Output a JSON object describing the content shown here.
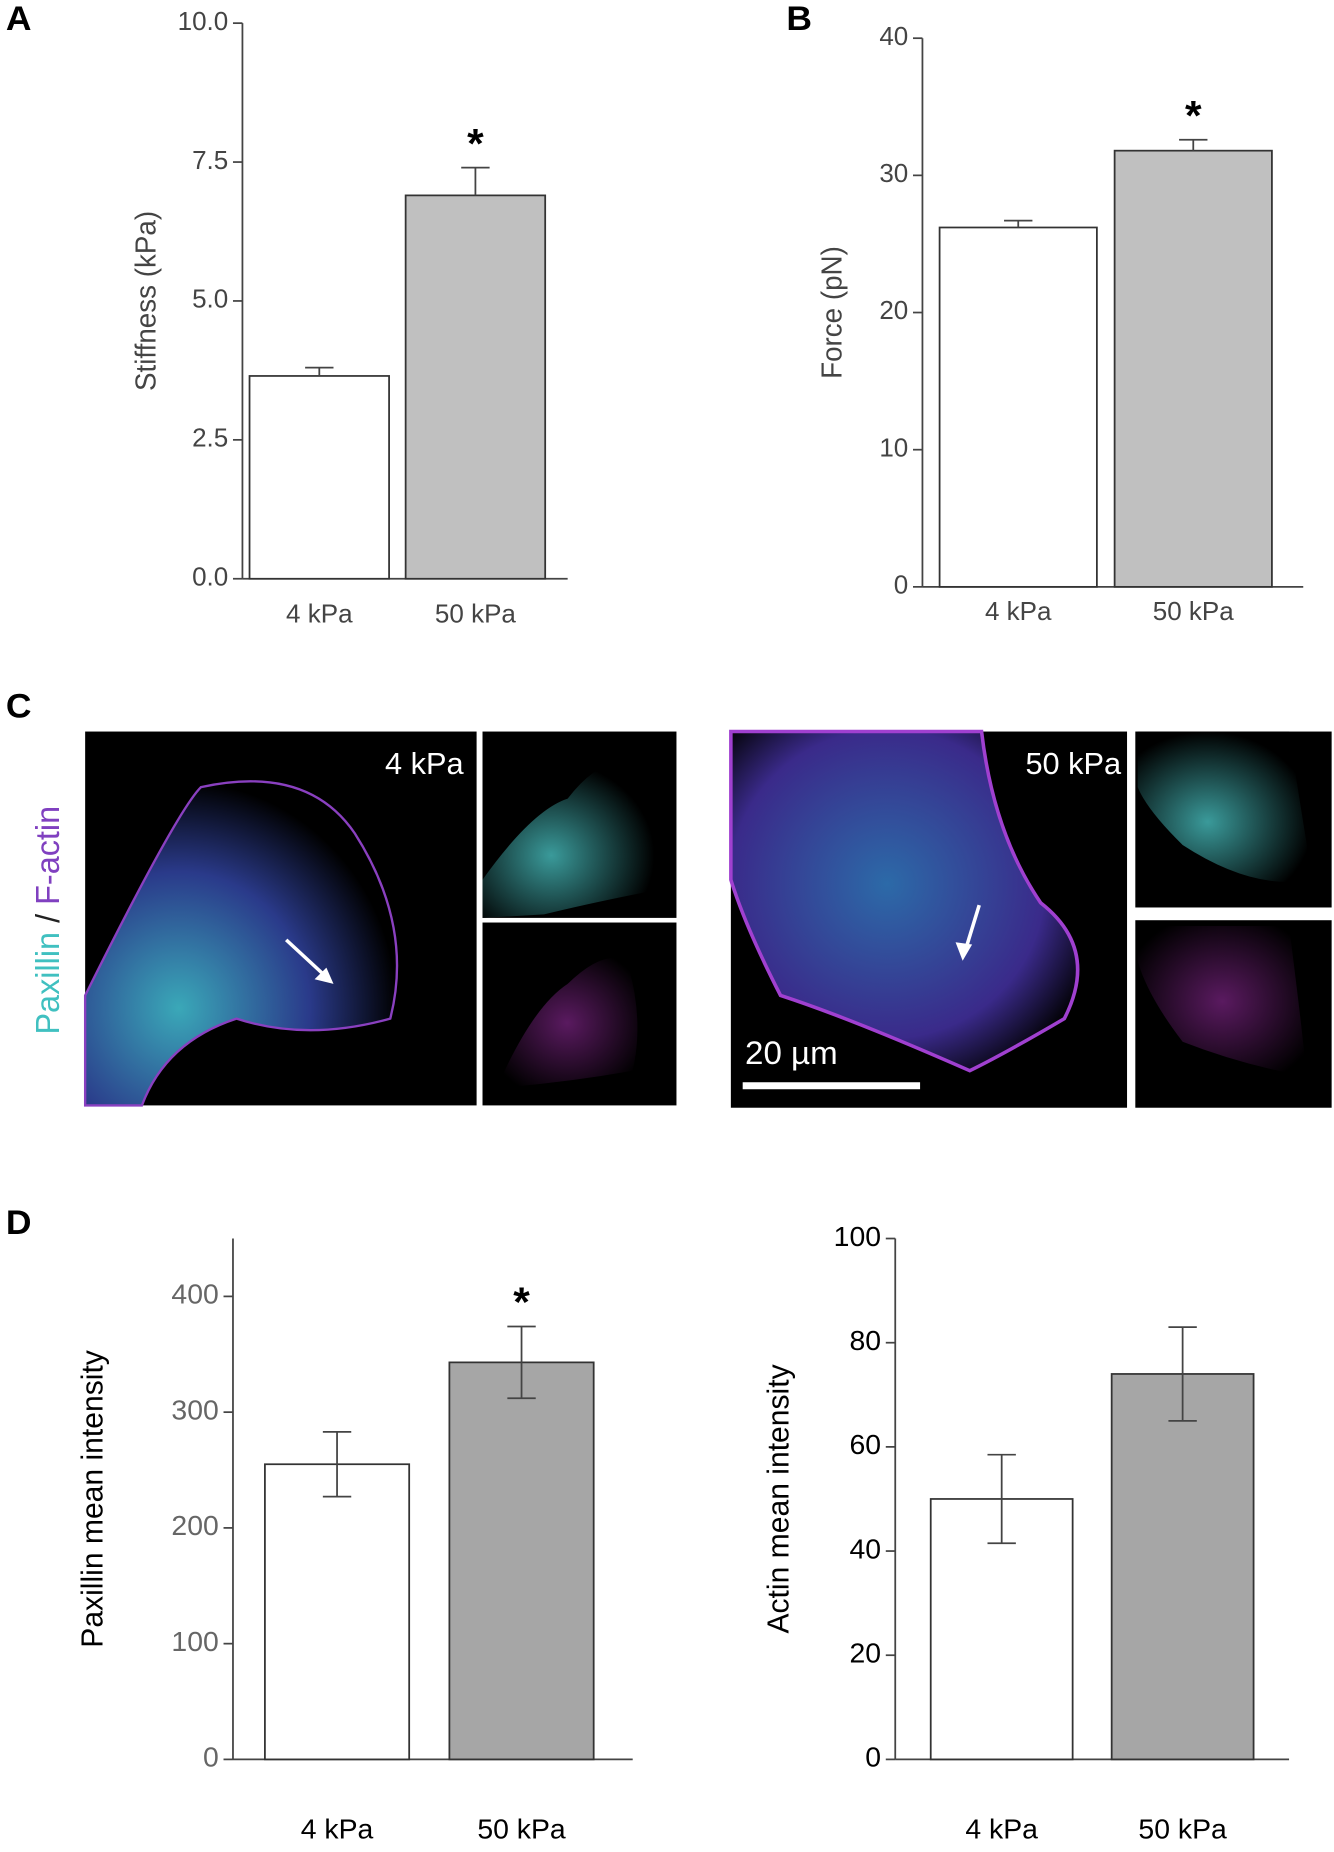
{
  "panel_labels": [
    "A",
    "B",
    "C",
    "D"
  ],
  "micrographs": {
    "stain_labels": [
      "Paxillin",
      "/",
      "F-actin"
    ],
    "conditions": [
      "4 kPa",
      "50 kPa"
    ],
    "scale_bar": "20 µm"
  },
  "chart_data": [
    {
      "type": "bar",
      "y_label": "Stiffness (kPa)",
      "categories": [
        "4 kPa",
        "50 kPa"
      ],
      "values": [
        3.65,
        6.9
      ],
      "errors": [
        0.15,
        0.5
      ],
      "error_bars": "up",
      "colors": [
        "#ffffff",
        "#c0c0c0"
      ],
      "annotation": "*",
      "ylim": [
        0,
        10
      ],
      "yticks": [
        {
          "value": 0,
          "label": "0.0"
        },
        2.5,
        {
          "value": 5,
          "label": "5.0"
        },
        7.5,
        {
          "value": 10,
          "label": "10.0"
        }
      ]
    },
    {
      "type": "bar",
      "y_label": "Force (pN)",
      "categories": [
        "4 kPa",
        "50 kPa"
      ],
      "values": [
        26.2,
        31.8
      ],
      "errors": [
        0.5,
        0.8
      ],
      "error_bars": "up",
      "colors": [
        "#ffffff",
        "#c0c0c0"
      ],
      "annotation": "*",
      "ylim": [
        0,
        40
      ],
      "yticks": [
        0,
        10,
        20,
        30,
        40
      ]
    },
    {
      "type": "bar",
      "y_label": "Paxillin mean intensity",
      "categories": [
        "4 kPa",
        "50 kPa"
      ],
      "values": [
        255,
        343
      ],
      "errors": [
        28,
        31
      ],
      "error_bars": "both",
      "colors": [
        "#ffffff",
        "#a6a6a6"
      ],
      "annotation": "*",
      "ylim": [
        0,
        450
      ],
      "yticks": [
        0,
        100,
        200,
        300,
        400
      ]
    },
    {
      "type": "bar",
      "y_label": "Actin mean intensity",
      "categories": [
        "4 kPa",
        "50 kPa"
      ],
      "values": [
        50,
        74
      ],
      "errors": [
        8.5,
        9
      ],
      "error_bars": "both",
      "colors": [
        "#ffffff",
        "#a6a6a6"
      ],
      "ylim": [
        0,
        100
      ],
      "yticks": [
        0,
        20,
        40,
        60,
        80,
        100
      ]
    }
  ]
}
